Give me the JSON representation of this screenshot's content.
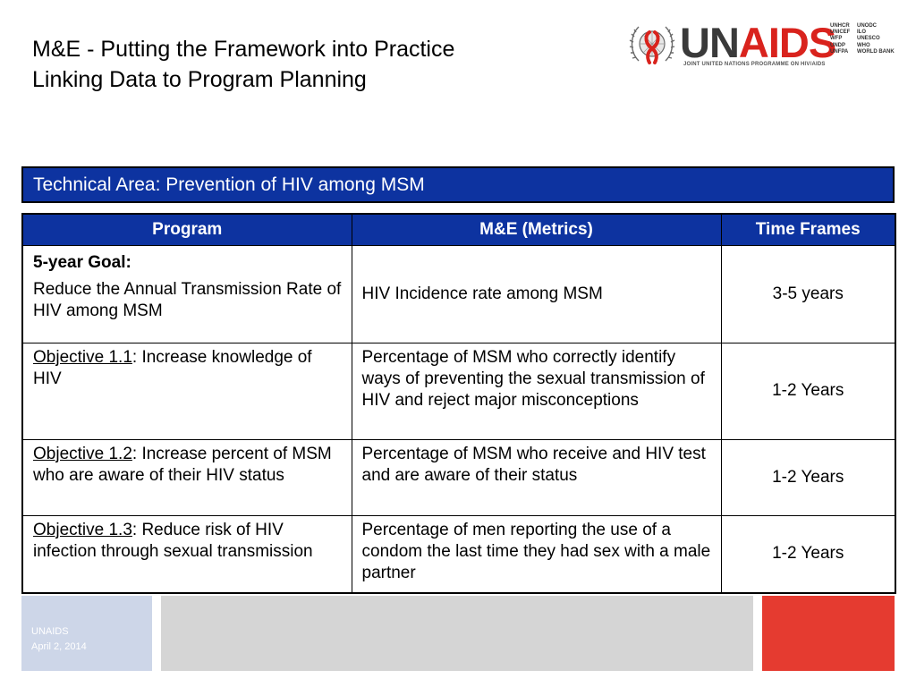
{
  "title": {
    "line1": "M&E - Putting the Framework into Practice",
    "line2": "Linking Data to Program Planning"
  },
  "logo": {
    "wordmark_un": "UN",
    "wordmark_aids": "AIDS",
    "tagline": "JOINT UNITED NATIONS PROGRAMME ON HIV/AIDS",
    "cosponsors_col1": [
      "UNHCR",
      "UNICEF",
      "WFP",
      "UNDP",
      "UNFPA"
    ],
    "cosponsors_col2": [
      "UNODC",
      "ILO",
      "UNESCO",
      "WHO",
      "WORLD BANK"
    ],
    "colors": {
      "un": "#3a3a3a",
      "aids": "#d9231d",
      "ribbon": "#d9231d"
    }
  },
  "technical_area": "Technical Area: Prevention of HIV among MSM",
  "table": {
    "headers": [
      "Program",
      "M&E (Metrics)",
      "Time Frames"
    ],
    "goal": {
      "label": "5-year Goal:",
      "text": "Reduce the Annual Transmission Rate of HIV among MSM",
      "metric": "HIV Incidence rate among MSM",
      "timeframe": "3-5 years"
    },
    "objectives": [
      {
        "label": "Objective 1.1",
        "text": ": Increase knowledge of HIV",
        "metric": "Percentage of MSM who correctly identify ways of preventing the sexual transmission of HIV and reject major misconceptions",
        "timeframe": "1-2 Years"
      },
      {
        "label": "Objective 1.2",
        "text": ": Increase percent of MSM who are aware of their HIV status",
        "metric": "Percentage of MSM who receive and HIV test and are aware of their status",
        "timeframe": "1-2 Years"
      },
      {
        "label": "Objective 1.3",
        "text": ": Reduce risk of HIV infection through sexual transmission",
        "metric": "Percentage of men reporting the use of a condom the last time they had sex with a male partner",
        "timeframe": "1-2 Years"
      }
    ]
  },
  "footer": {
    "org": "UNAIDS",
    "date": "April 2, 2014"
  },
  "colors": {
    "header_blue": "#0d33a0",
    "footer_light_blue": "#cdd6e8",
    "footer_gray": "#d5d5d5",
    "footer_red": "#e53b30"
  }
}
